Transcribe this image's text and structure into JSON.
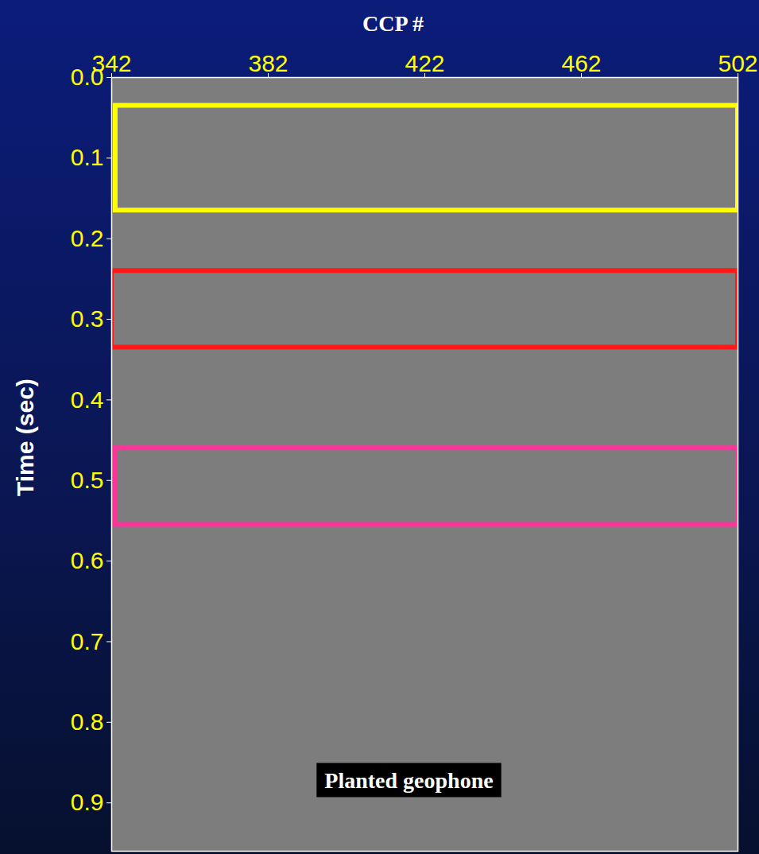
{
  "chart_data": {
    "type": "seismic_section",
    "x_label": "CCP #",
    "y_label": "Time (sec)",
    "annotation": "Planted geophone",
    "xlim": [
      342,
      502
    ],
    "xticks": [
      342,
      382,
      422,
      462,
      502
    ],
    "ylim": [
      0,
      0.96
    ],
    "yticks": [
      {
        "value": 0,
        "label": "0.0"
      },
      0.1,
      0.2,
      0.3,
      0.4,
      0.5,
      0.6,
      0.7,
      0.8,
      0.9
    ],
    "boxes": [
      {
        "x0": 343,
        "x1": 502,
        "y0": 0.035,
        "y1": 0.165,
        "color": "#ffff00"
      },
      {
        "x0": 342,
        "x1": 502,
        "y0": 0.24,
        "y1": 0.335,
        "color": "#ff1a1a"
      },
      {
        "x0": 343,
        "x1": 502,
        "y0": 0.46,
        "y1": 0.555,
        "color": "#ff3399"
      }
    ]
  }
}
